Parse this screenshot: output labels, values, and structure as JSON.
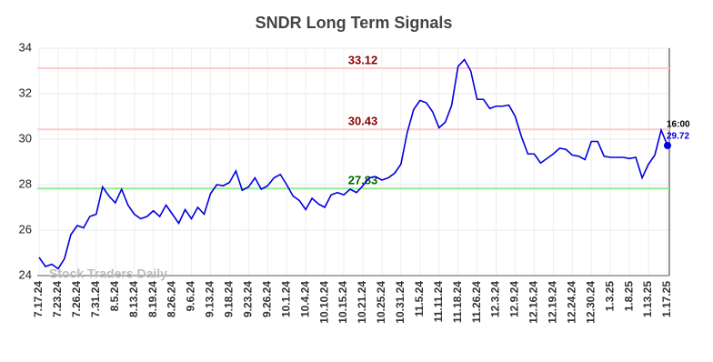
{
  "chart_data": {
    "type": "line",
    "title": "SNDR Long Term Signals",
    "watermark": "Stock Traders Daily",
    "categories": [
      "7.17.24",
      null,
      null,
      "7.23.24",
      null,
      null,
      "7.26.24",
      null,
      null,
      "7.31.24",
      null,
      null,
      "8.5.24",
      null,
      null,
      "8.13.24",
      null,
      null,
      "8.19.24",
      null,
      null,
      "8.26.24",
      null,
      null,
      "9.6.24",
      null,
      null,
      "9.13.24",
      null,
      null,
      "9.18.24",
      null,
      null,
      "9.23.24",
      null,
      null,
      "9.26.24",
      null,
      null,
      "10.1.24",
      null,
      null,
      "10.4.24",
      null,
      null,
      "10.10.24",
      null,
      null,
      "10.15.24",
      null,
      null,
      "10.21.24",
      null,
      null,
      "10.25.24",
      null,
      null,
      "10.31.24",
      null,
      null,
      "11.5.24",
      null,
      null,
      "11.11.24",
      null,
      null,
      "11.18.24",
      null,
      null,
      "11.26.24",
      null,
      null,
      "12.3.24",
      null,
      null,
      "12.9.24",
      null,
      null,
      "12.16.24",
      null,
      null,
      "12.19.24",
      null,
      null,
      "12.24.24",
      null,
      null,
      "12.30.24",
      null,
      null,
      "1.3.25",
      null,
      null,
      "1.8.25",
      null,
      null,
      "1.13.25",
      null,
      null,
      "1.17.25"
    ],
    "series": [
      {
        "color": "#0000dd",
        "values": [
          24.8,
          24.4,
          24.5,
          24.3,
          24.75,
          25.8,
          26.2,
          26.1,
          26.6,
          26.7,
          27.9,
          27.5,
          27.2,
          27.8,
          27.1,
          26.7,
          26.5,
          26.6,
          26.85,
          26.6,
          27.1,
          26.7,
          26.3,
          26.9,
          26.5,
          27.0,
          26.7,
          27.6,
          28.0,
          27.95,
          28.1,
          28.6,
          27.75,
          27.9,
          28.3,
          27.8,
          27.95,
          28.3,
          28.45,
          28.0,
          27.5,
          27.3,
          26.9,
          27.4,
          27.15,
          27.0,
          27.55,
          27.65,
          27.55,
          27.8,
          27.65,
          27.95,
          28.3,
          28.35,
          28.2,
          28.3,
          28.5,
          28.9,
          30.3,
          31.3,
          31.7,
          31.6,
          31.2,
          30.5,
          30.75,
          31.5,
          33.2,
          33.5,
          33.0,
          31.75,
          31.75,
          31.35,
          31.45,
          31.45,
          31.5,
          31.0,
          30.1,
          29.35,
          29.35,
          28.95,
          29.15,
          29.35,
          29.6,
          29.55,
          29.3,
          29.25,
          29.1,
          29.9,
          29.9,
          29.25,
          29.2,
          29.2,
          29.2,
          29.15,
          29.2,
          28.3,
          28.9,
          29.3,
          30.4,
          29.72
        ]
      }
    ],
    "levels": [
      {
        "value": 33.12,
        "color": "#ffcccc",
        "label_color": "#8b0000"
      },
      {
        "value": 30.43,
        "color": "#ffcccc",
        "label_color": "#8b0000"
      },
      {
        "value": 27.83,
        "color": "#90ee90",
        "label_color": "#006400"
      }
    ],
    "last_time": "16:00",
    "ylim": [
      24,
      34
    ],
    "yticks": [
      24,
      26,
      28,
      30,
      32,
      34
    ],
    "grid": true
  }
}
